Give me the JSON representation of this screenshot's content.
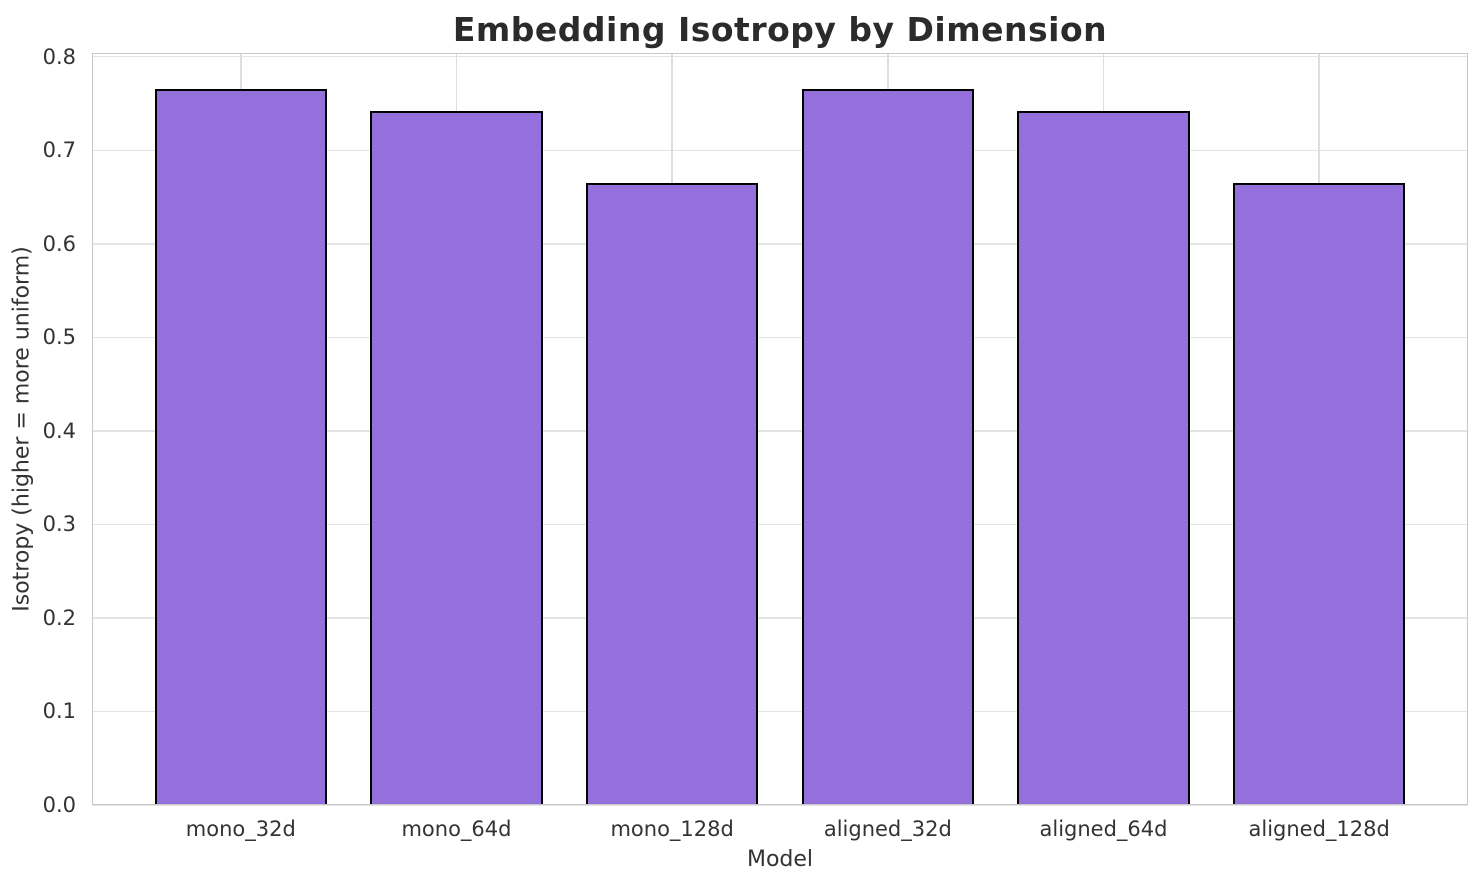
{
  "chart_data": {
    "type": "bar",
    "title": "Embedding Isotropy by Dimension",
    "xlabel": "Model",
    "ylabel": "Isotropy (higher = more uniform)",
    "categories": [
      "mono_32d",
      "mono_64d",
      "mono_128d",
      "aligned_32d",
      "aligned_64d",
      "aligned_128d"
    ],
    "values": [
      0.765,
      0.742,
      0.665,
      0.765,
      0.742,
      0.665
    ],
    "yticks": [
      0.0,
      0.1,
      0.2,
      0.3,
      0.4,
      0.5,
      0.6,
      0.7,
      0.8
    ],
    "ytick_labels": [
      "0.0",
      "0.1",
      "0.2",
      "0.3",
      "0.4",
      "0.5",
      "0.6",
      "0.7",
      "0.8"
    ],
    "ylim": [
      0,
      0.804
    ],
    "xlim": [
      -0.69,
      5.69
    ],
    "bar_width": 0.8,
    "grid": true,
    "legend": false,
    "colors": {
      "bar_fill": "#9370DB",
      "bar_edge": "#000000",
      "grid_h": "#e4e4e4",
      "grid_v": "#dedede",
      "spine": "#c9c9c9",
      "tick_text": "#333333",
      "title_text": "#2b2b2b",
      "background": "#ffffff"
    }
  }
}
